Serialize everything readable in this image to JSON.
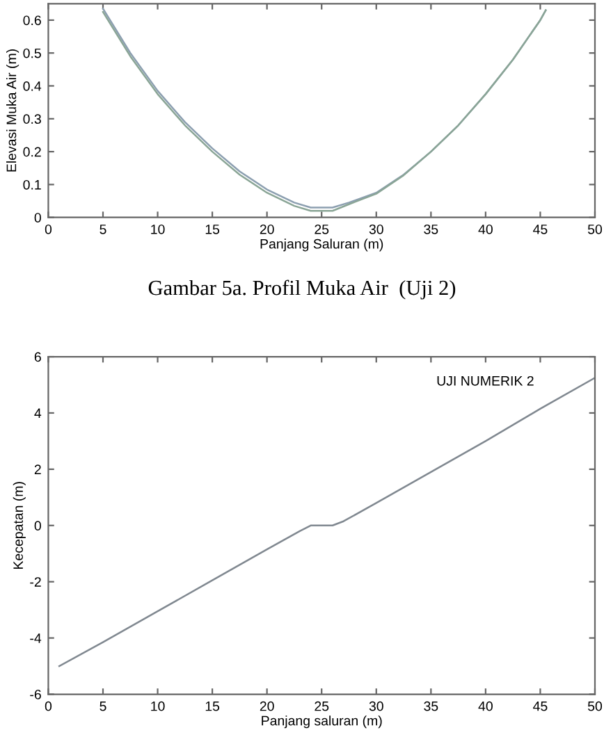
{
  "chart_data": [
    {
      "type": "line",
      "xlabel": "Panjang Saluran (m)",
      "ylabel": "Elevasi Muka Air (m)",
      "xlim": [
        0,
        50
      ],
      "ylim": [
        0,
        0.65
      ],
      "xticks": [
        0,
        5,
        10,
        15,
        20,
        25,
        30,
        35,
        40,
        45,
        50
      ],
      "yticks": [
        0,
        0.1,
        0.2,
        0.3,
        0.4,
        0.5,
        0.6
      ],
      "grid": false,
      "legend": false,
      "annotations": [
        "Gambar 5a. Profil Muka Air  (Uji 2)"
      ],
      "series": [
        {
          "color": "#8c9fb0",
          "x": [
            5,
            7.5,
            10,
            12.5,
            15,
            17.5,
            20,
            22.5,
            24,
            26,
            27.5,
            30,
            32.5,
            35,
            37.5,
            40,
            42.5,
            45,
            45.5
          ],
          "values": [
            0.635,
            0.5,
            0.385,
            0.29,
            0.21,
            0.14,
            0.085,
            0.045,
            0.03,
            0.03,
            0.045,
            0.075,
            0.13,
            0.2,
            0.28,
            0.375,
            0.48,
            0.6,
            0.63
          ]
        },
        {
          "color": "#8aa596",
          "x": [
            5,
            7.5,
            10,
            12.5,
            15,
            17.5,
            20,
            22.5,
            24,
            26,
            27.5,
            30,
            32.5,
            35,
            37.5,
            40,
            42.5,
            45,
            45.5
          ],
          "values": [
            0.625,
            0.49,
            0.375,
            0.28,
            0.2,
            0.13,
            0.075,
            0.035,
            0.02,
            0.02,
            0.04,
            0.072,
            0.128,
            0.2,
            0.28,
            0.375,
            0.48,
            0.6,
            0.63
          ]
        }
      ]
    },
    {
      "type": "line",
      "xlabel": "Panjang saluran (m)",
      "ylabel": "Kecepatan (m)",
      "xlim": [
        0,
        50
      ],
      "ylim": [
        -6,
        6
      ],
      "xticks": [
        0,
        5,
        10,
        15,
        20,
        25,
        30,
        35,
        40,
        45,
        50
      ],
      "yticks": [
        -6,
        -4,
        -2,
        0,
        2,
        4,
        6
      ],
      "grid": false,
      "legend": false,
      "annotations": [
        "UJI NUMERIK 2"
      ],
      "series": [
        {
          "color": "#808890",
          "x": [
            1,
            5,
            10,
            15,
            20,
            23,
            24,
            26,
            27,
            30,
            35,
            40,
            45,
            50
          ],
          "values": [
            -5,
            -4.15,
            -3.05,
            -1.95,
            -0.85,
            -0.2,
            0,
            0,
            0.15,
            0.8,
            1.9,
            3.0,
            4.15,
            5.25
          ]
        }
      ]
    }
  ]
}
